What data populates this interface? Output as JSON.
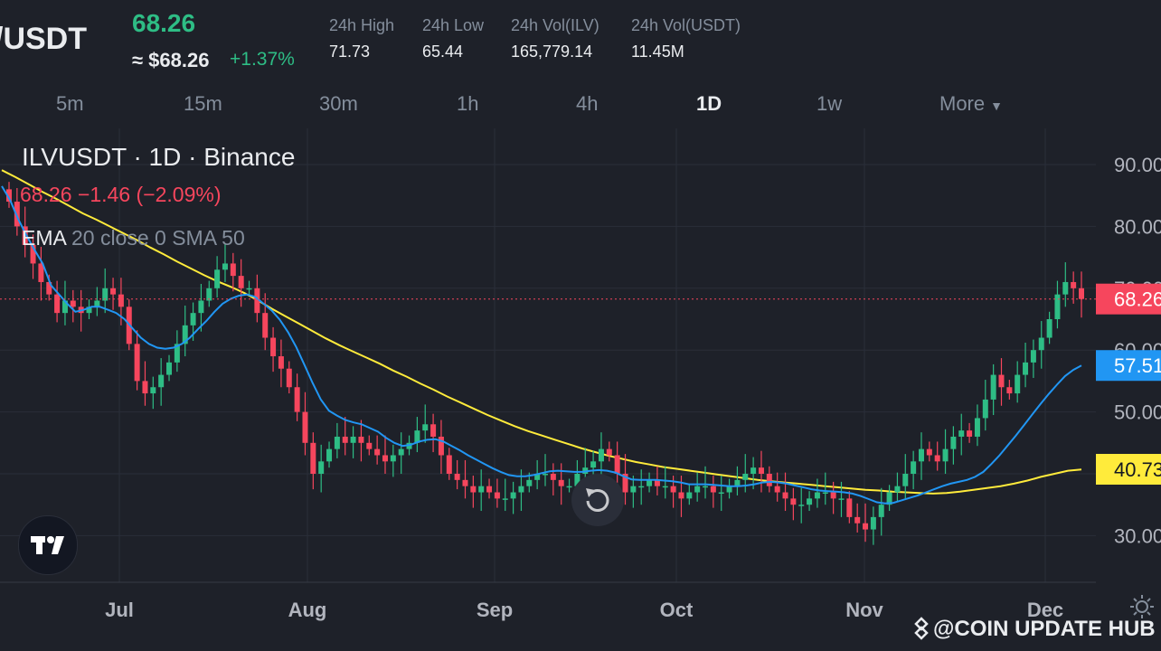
{
  "header": {
    "pair": "/USDT",
    "last_price": "68.26",
    "approx_usd": "≈ $68.26",
    "change_pct": "+1.37%",
    "stats": [
      {
        "label": "24h High",
        "value": "71.73"
      },
      {
        "label": "24h Low",
        "value": "65.44"
      },
      {
        "label": "24h Vol(ILV)",
        "value": "165,779.14"
      },
      {
        "label": "24h Vol(USDT)",
        "value": "11.45M"
      }
    ]
  },
  "tabs": [
    {
      "label": "5m",
      "active": false
    },
    {
      "label": "15m",
      "active": false
    },
    {
      "label": "30m",
      "active": false
    },
    {
      "label": "1h",
      "active": false
    },
    {
      "label": "4h",
      "active": false
    },
    {
      "label": "1D",
      "active": true
    },
    {
      "label": "1w",
      "active": false
    },
    {
      "label": "More",
      "active": false
    }
  ],
  "legend": {
    "line1": "ILVUSDT · 1D · Binance",
    "line2": "68.26  −1.46 (−2.09%)",
    "ema_title": "EMA",
    "ema_params": " 20 close 0 SMA 50"
  },
  "watermark": "@COIN UPDATE HUB",
  "icons": {
    "logo": "tradingview-logo-icon",
    "reset": "reset-chart-icon",
    "watermark": "binance-diamond-icon",
    "settings": "sun-settings-icon"
  },
  "colors": {
    "up": "#2ebd85",
    "down": "#f6465d",
    "ema20": "#2196f3",
    "sma50": "#ffeb3b",
    "background": "#1e2129",
    "grid": "#2a2e39"
  },
  "chart_data": {
    "type": "candlestick",
    "title": "ILVUSDT · 1D · Binance",
    "y_ticks": [
      30,
      40,
      50,
      60,
      70,
      80,
      90
    ],
    "y_tick_labels": [
      "30.00",
      "40.00",
      "50.00",
      "60.00",
      "70.00",
      "80.00",
      "90.00"
    ],
    "x_tick_labels": [
      "Jul",
      "Aug",
      "Sep",
      "Oct",
      "Nov",
      "Dec"
    ],
    "ylim": [
      24,
      94
    ],
    "last_price": 68.26,
    "price_tags": [
      {
        "label": "68.26",
        "value": 68.26,
        "color": "#f6465d"
      },
      {
        "label": "57.51",
        "value": 57.51,
        "color": "#2196f3"
      },
      {
        "label": "40.73",
        "value": 40.73,
        "color": "#ffeb3b"
      }
    ],
    "close_series": [
      84,
      80,
      77,
      74,
      71,
      69,
      66,
      68,
      67,
      66,
      67,
      68,
      70,
      69,
      67,
      61,
      55,
      53,
      54,
      56,
      58,
      61,
      64,
      66,
      68,
      70,
      73,
      74,
      72,
      70,
      70,
      66,
      62,
      59,
      57,
      54,
      50,
      45,
      40,
      42,
      44,
      46,
      45,
      46,
      45,
      44,
      43,
      42,
      43,
      44,
      45,
      47,
      48,
      46,
      43,
      40,
      39,
      38,
      37,
      38,
      37,
      36,
      36,
      37,
      38,
      39,
      40,
      40,
      39,
      38,
      38,
      40,
      41,
      42,
      44,
      43,
      40,
      37,
      38,
      38,
      39,
      38,
      38,
      37,
      36,
      37,
      38,
      38,
      37,
      37,
      38,
      39,
      40,
      41,
      40,
      38,
      37,
      36,
      35,
      35,
      36,
      37,
      37,
      36,
      36,
      33,
      32,
      31,
      33,
      35,
      37,
      38,
      40,
      42,
      44,
      43,
      42,
      44,
      46,
      47,
      46,
      49,
      52,
      56,
      54,
      53,
      56,
      58,
      60,
      62,
      65,
      69,
      71,
      70,
      68.26
    ],
    "ema20": [
      86.5,
      84.3,
      81.2,
      78.6,
      76.2,
      74.0,
      70.5,
      69.0,
      67.5,
      66.2,
      66.5,
      67.0,
      67.0,
      66.5,
      66.0,
      65.0,
      63.5,
      62.0,
      61.0,
      60.4,
      60.2,
      60.4,
      61.0,
      62.0,
      63.4,
      64.7,
      66.2,
      67.5,
      68.3,
      68.8,
      69.0,
      68.6,
      67.5,
      66.4,
      64.9,
      62.9,
      60.5,
      57.6,
      54.7,
      52.0,
      50.2,
      49.4,
      48.7,
      48.3,
      48.0,
      47.4,
      46.8,
      45.8,
      45.0,
      44.5,
      44.7,
      45.2,
      45.5,
      45.6,
      45.2,
      44.5,
      43.8,
      43.0,
      42.3,
      41.6,
      40.9,
      40.3,
      39.8,
      39.6,
      39.6,
      39.8,
      40.1,
      40.4,
      40.5,
      40.4,
      40.3,
      40.3,
      40.5,
      40.6,
      40.5,
      40.2,
      39.6,
      39.1,
      39.0,
      39.0,
      39.0,
      38.9,
      38.8,
      38.6,
      38.3,
      38.3,
      38.3,
      38.2,
      38.1,
      38.0,
      38.0,
      38.1,
      38.3,
      38.6,
      38.7,
      38.6,
      38.4,
      38.1,
      37.8,
      37.5,
      37.3,
      37.2,
      37.1,
      37.0,
      36.8,
      36.4,
      35.9,
      35.4,
      35.2,
      35.3,
      35.7,
      36.1,
      36.5,
      37.0,
      37.5,
      38.0,
      38.4,
      38.7,
      39.0,
      39.5,
      40.3,
      41.6,
      43.0,
      44.6,
      46.2,
      47.9,
      49.6,
      51.3,
      52.9,
      54.4,
      55.8,
      56.8,
      57.5
    ],
    "sma50": [
      89.1,
      88.0,
      86.8,
      85.6,
      84.5,
      83.3,
      82.1,
      81.1,
      80.0,
      78.9,
      77.8,
      76.6,
      75.5,
      74.3,
      73.2,
      72.1,
      71.1,
      70.2,
      69.2,
      68.0,
      66.7,
      65.5,
      64.3,
      63.1,
      61.9,
      60.8,
      59.8,
      58.8,
      57.8,
      56.7,
      55.7,
      54.6,
      53.6,
      52.5,
      51.5,
      50.5,
      49.5,
      48.6,
      47.7,
      46.9,
      46.2,
      45.5,
      44.8,
      44.1,
      43.5,
      42.9,
      42.4,
      41.9,
      41.5,
      41.1,
      40.8,
      40.5,
      40.2,
      39.9,
      39.6,
      39.3,
      39.0,
      38.8,
      38.6,
      38.4,
      38.2,
      38.0,
      37.8,
      37.6,
      37.4,
      37.3,
      37.1,
      37.0,
      36.9,
      36.8,
      36.9,
      37.1,
      37.4,
      37.7,
      38.0,
      38.4,
      38.9,
      39.5,
      40.0,
      40.5,
      40.7
    ]
  }
}
